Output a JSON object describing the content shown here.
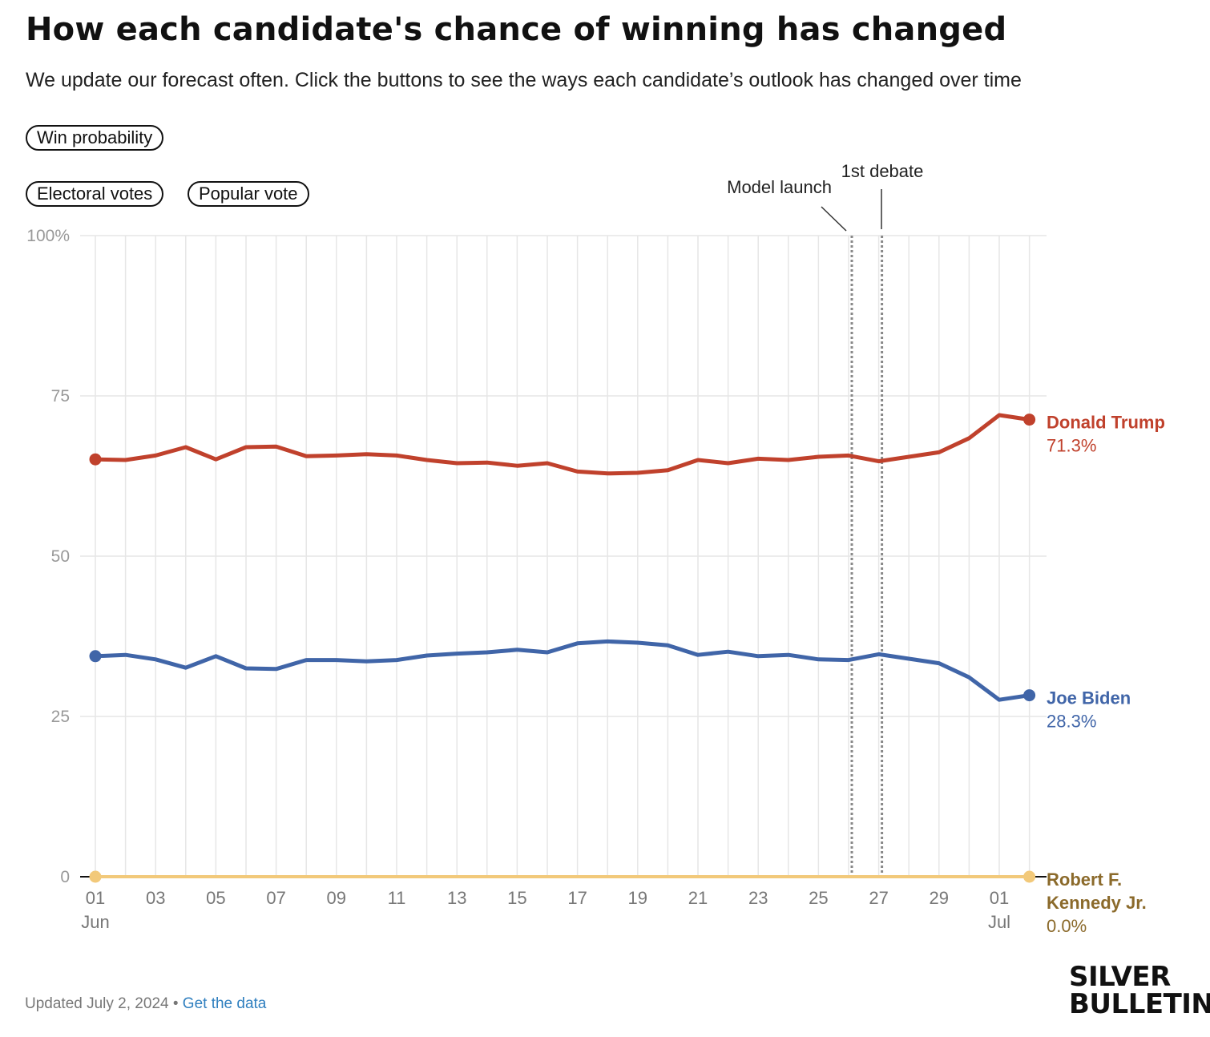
{
  "header": {
    "title": "How each candidate's chance of winning has changed",
    "subtitle": "We update our forecast often. Click the buttons to see the ways each candidate’s outlook has changed over time"
  },
  "buttons": {
    "win_probability": "Win probability",
    "electoral_votes": "Electoral votes",
    "popular_vote": "Popular vote"
  },
  "footer": {
    "updated": "Updated July 2, 2024",
    "separator": " • ",
    "link": "Get the data"
  },
  "logo": {
    "line1": "SILVER",
    "line2": "BULLETIN"
  },
  "colors": {
    "trump": "#c0412c",
    "biden": "#4065a8",
    "rfk": "#f2c97a",
    "rfk_label": "#8b6a2b",
    "grid": "#e6e6e6",
    "axis_text": "#777777"
  },
  "chart_data": {
    "type": "line",
    "title": "How each candidate's chance of winning has changed",
    "ylim": [
      0,
      100
    ],
    "yticks": [
      {
        "value": 0,
        "label": "0"
      },
      {
        "value": 25,
        "label": "25"
      },
      {
        "value": 50,
        "label": "50"
      },
      {
        "value": 75,
        "label": "75"
      },
      {
        "value": 100,
        "label": "100%"
      }
    ],
    "x_count": 32,
    "xticks": [
      {
        "index": 0,
        "label": "01",
        "sub": "Jun"
      },
      {
        "index": 2,
        "label": "03"
      },
      {
        "index": 4,
        "label": "05"
      },
      {
        "index": 6,
        "label": "07"
      },
      {
        "index": 8,
        "label": "09"
      },
      {
        "index": 10,
        "label": "11"
      },
      {
        "index": 12,
        "label": "13"
      },
      {
        "index": 14,
        "label": "15"
      },
      {
        "index": 16,
        "label": "17"
      },
      {
        "index": 18,
        "label": "19"
      },
      {
        "index": 20,
        "label": "21"
      },
      {
        "index": 22,
        "label": "23"
      },
      {
        "index": 24,
        "label": "25"
      },
      {
        "index": 26,
        "label": "27"
      },
      {
        "index": 28,
        "label": "29"
      },
      {
        "index": 30,
        "label": "01",
        "sub": "Jul"
      }
    ],
    "x": [
      "Jun 01",
      "Jun 02",
      "Jun 03",
      "Jun 04",
      "Jun 05",
      "Jun 06",
      "Jun 07",
      "Jun 08",
      "Jun 09",
      "Jun 10",
      "Jun 11",
      "Jun 12",
      "Jun 13",
      "Jun 14",
      "Jun 15",
      "Jun 16",
      "Jun 17",
      "Jun 18",
      "Jun 19",
      "Jun 20",
      "Jun 21",
      "Jun 22",
      "Jun 23",
      "Jun 24",
      "Jun 25",
      "Jun 26",
      "Jun 27",
      "Jun 28",
      "Jun 29",
      "Jun 30",
      "Jul 01",
      "Jul 02"
    ],
    "annotations": [
      {
        "index": 25,
        "label": "Model launch"
      },
      {
        "index": 26,
        "label": "1st debate"
      }
    ],
    "series": [
      {
        "name": "Donald Trump",
        "key": "trump",
        "final_label": "71.3%",
        "values": [
          65.1,
          65.0,
          65.7,
          67.0,
          65.1,
          67.0,
          67.1,
          65.6,
          65.7,
          65.9,
          65.7,
          65.0,
          64.5,
          64.6,
          64.1,
          64.5,
          63.2,
          62.9,
          63.0,
          63.4,
          65.0,
          64.5,
          65.2,
          65.0,
          65.5,
          65.7,
          64.8,
          65.5,
          66.2,
          68.4,
          72.0,
          71.3
        ]
      },
      {
        "name": "Joe Biden",
        "key": "biden",
        "final_label": "28.3%",
        "values": [
          34.4,
          34.6,
          33.9,
          32.6,
          34.4,
          32.5,
          32.4,
          33.8,
          33.8,
          33.6,
          33.8,
          34.5,
          34.8,
          35.0,
          35.4,
          35.0,
          36.4,
          36.7,
          36.5,
          36.1,
          34.6,
          35.1,
          34.4,
          34.6,
          33.9,
          33.8,
          34.7,
          34.0,
          33.3,
          31.1,
          27.6,
          28.3
        ]
      },
      {
        "name": "Robert F. Kennedy Jr.",
        "name_lines": [
          "Robert F.",
          "Kennedy Jr."
        ],
        "key": "rfk",
        "final_label": "0.0%",
        "values": [
          0.0,
          0.0,
          0.0,
          0.0,
          0.0,
          0.0,
          0.0,
          0.0,
          0.0,
          0.0,
          0.0,
          0.0,
          0.0,
          0.0,
          0.0,
          0.0,
          0.0,
          0.0,
          0.0,
          0.0,
          0.0,
          0.0,
          0.0,
          0.0,
          0.0,
          0.0,
          0.0,
          0.0,
          0.0,
          0.0,
          0.0,
          0.0
        ]
      }
    ]
  }
}
